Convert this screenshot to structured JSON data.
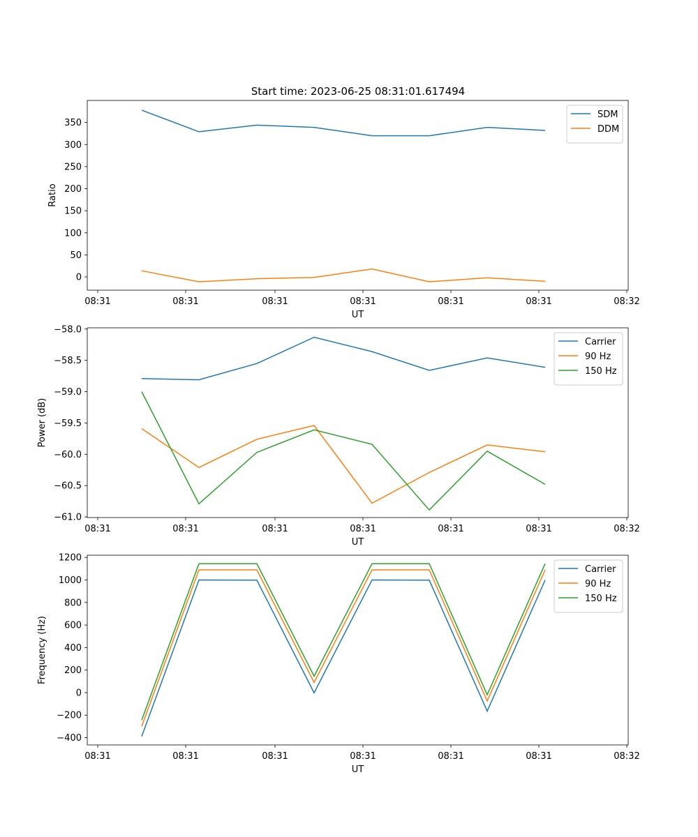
{
  "figure": {
    "title": "Start time: 2023-06-25 08:31:01.617494"
  },
  "chart_data": [
    {
      "type": "line",
      "title": "Start time: 2023-06-25 08:31:01.617494",
      "xlabel": "UT",
      "ylabel": "Ratio",
      "x_ticks": [
        "08:31",
        "08:31",
        "08:31",
        "08:31",
        "08:31",
        "08:31",
        "08:32"
      ],
      "y_ticks": [
        0,
        50,
        100,
        150,
        200,
        250,
        300,
        350
      ],
      "ylim": [
        -30,
        400
      ],
      "legend_position": "top-right",
      "grid": false,
      "x_step_count": 8,
      "series": [
        {
          "name": "SDM",
          "color": "#1f77b4",
          "values": [
            378,
            329,
            344,
            339,
            320,
            320,
            339,
            332
          ]
        },
        {
          "name": "DDM",
          "color": "#ff7f0e",
          "values": [
            14,
            -11,
            -4,
            -1,
            18,
            -11,
            -2,
            -10
          ]
        }
      ]
    },
    {
      "type": "line",
      "title": "",
      "xlabel": "UT",
      "ylabel": "Power (dB)",
      "x_ticks": [
        "08:31",
        "08:31",
        "08:31",
        "08:31",
        "08:31",
        "08:31",
        "08:32"
      ],
      "y_ticks": [
        "−61.0",
        "−60.5",
        "−60.0",
        "−59.5",
        "−59.0",
        "−58.5",
        "−58.0"
      ],
      "ylim": [
        -61.01,
        -57.98
      ],
      "legend_position": "top-right",
      "grid": false,
      "series": [
        {
          "name": "Carrier",
          "color": "#1f77b4",
          "values": [
            -58.79,
            -58.81,
            -58.55,
            -58.13,
            -58.36,
            -58.66,
            -58.46,
            -58.61
          ]
        },
        {
          "name": "90 Hz",
          "color": "#ff7f0e",
          "values": [
            -59.59,
            -60.21,
            -59.76,
            -59.54,
            -60.78,
            -60.29,
            -59.85,
            -59.96
          ]
        },
        {
          "name": "150 Hz",
          "color": "#2ca02c",
          "values": [
            -59.0,
            -60.79,
            -59.97,
            -59.61,
            -59.84,
            -60.89,
            -59.95,
            -60.48
          ]
        }
      ]
    },
    {
      "type": "line",
      "title": "",
      "xlabel": "UT",
      "ylabel": "Frequency (Hz)",
      "x_ticks": [
        "08:31",
        "08:31",
        "08:31",
        "08:31",
        "08:31",
        "08:31",
        "08:32"
      ],
      "y_ticks": [
        "−400",
        "−200",
        "0",
        "200",
        "400",
        "600",
        "800",
        "1000",
        "1200"
      ],
      "ylim": [
        -465,
        1220
      ],
      "legend_position": "top-right",
      "grid": false,
      "series": [
        {
          "name": "Carrier",
          "color": "#1f77b4",
          "values": [
            -390,
            1000,
            998,
            -2,
            1000,
            998,
            -165,
            1000
          ]
        },
        {
          "name": "90 Hz",
          "color": "#ff7f0e",
          "values": [
            -300,
            1090,
            1090,
            90,
            1090,
            1090,
            -75,
            1090
          ]
        },
        {
          "name": "150 Hz",
          "color": "#2ca02c",
          "values": [
            -245,
            1145,
            1145,
            145,
            1145,
            1145,
            -20,
            1145
          ]
        }
      ]
    }
  ]
}
